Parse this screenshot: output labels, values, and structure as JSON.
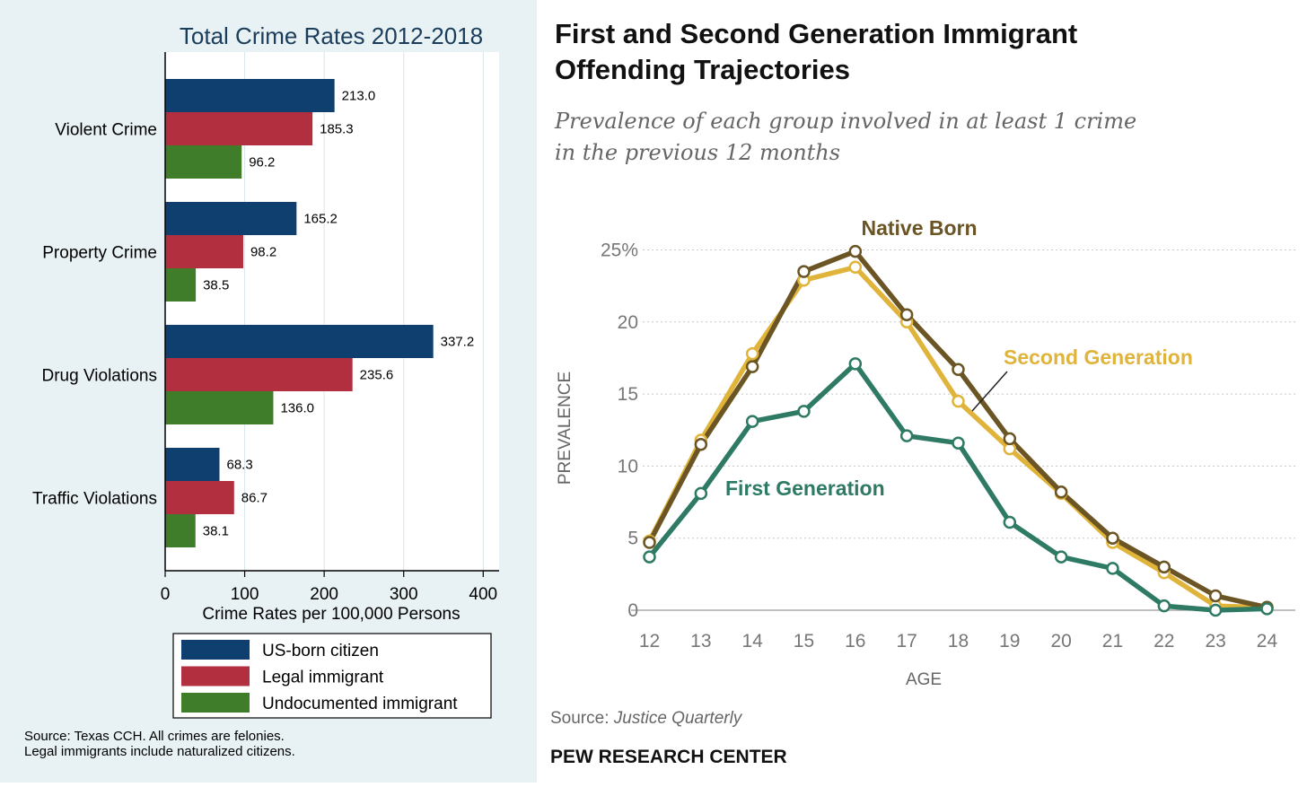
{
  "chart_data": [
    {
      "type": "bar",
      "orientation": "horizontal",
      "title": "Total Crime Rates 2012-2018",
      "categories": [
        "Violent Crime",
        "Property Crime",
        "Drug Violations",
        "Traffic Violations"
      ],
      "series": [
        {
          "name": "US-born citizen",
          "color": "#0e3f6e",
          "values": [
            213.0,
            165.2,
            337.2,
            68.3
          ],
          "labels": [
            "213.0",
            "165.2",
            "337.2",
            "68.3"
          ]
        },
        {
          "name": "Legal immigrant",
          "color": "#b12f3f",
          "values": [
            185.3,
            98.2,
            235.6,
            86.7
          ],
          "labels": [
            "185.3",
            "98.2",
            "235.6",
            "86.7"
          ]
        },
        {
          "name": "Undocumented immigrant",
          "color": "#3f7d2a",
          "values": [
            96.2,
            38.5,
            136.0,
            38.1
          ],
          "labels": [
            "96.2",
            "38.5",
            "136.0",
            "38.1"
          ]
        }
      ],
      "xlabel": "Crime Rates per 100,000 Persons",
      "xlim": [
        0,
        420
      ],
      "xticks": [
        "0",
        "100",
        "200",
        "300",
        "400"
      ],
      "grid": true,
      "legend_position": "bottom",
      "source_lines": [
        "Source: Texas CCH. All crimes are felonies.",
        "Legal immigrants include naturalized citizens."
      ]
    },
    {
      "type": "line",
      "title_lines": [
        "First and Second Generation Immigrant",
        "Offending Trajectories"
      ],
      "subtitle_lines": [
        "Prevalence of each group involved in at least 1 crime",
        "in the previous 12 months"
      ],
      "x": [
        12,
        13,
        14,
        15,
        16,
        17,
        18,
        19,
        20,
        21,
        22,
        23,
        24
      ],
      "xticks": [
        "12",
        "13",
        "14",
        "15",
        "16",
        "17",
        "18",
        "19",
        "20",
        "21",
        "22",
        "23",
        "24"
      ],
      "yticks": [
        "0",
        "5",
        "10",
        "15",
        "20",
        "25%"
      ],
      "ylim": [
        0,
        25
      ],
      "xlabel": "AGE",
      "ylabel": "PREVALENCE",
      "grid": "dotted horizontal",
      "series": [
        {
          "name": "Second Generation",
          "color": "#e0b43a",
          "values": [
            4.8,
            11.8,
            17.8,
            22.9,
            23.8,
            20.0,
            14.5,
            11.2,
            8.1,
            4.7,
            2.6,
            0.3,
            0.2
          ]
        },
        {
          "name": "Native Born",
          "color": "#6b5524",
          "values": [
            4.7,
            11.5,
            16.9,
            23.5,
            24.9,
            20.5,
            16.7,
            11.9,
            8.2,
            5.0,
            3.0,
            1.0,
            0.2
          ]
        },
        {
          "name": "First Generation",
          "color": "#2e7a64",
          "values": [
            3.7,
            8.1,
            13.1,
            13.8,
            17.1,
            12.1,
            11.6,
            6.1,
            3.7,
            2.9,
            0.3,
            0.0,
            0.1
          ]
        }
      ],
      "source_label": "Source:",
      "source_name": "Justice Quarterly",
      "brand": "PEW RESEARCH CENTER"
    }
  ]
}
